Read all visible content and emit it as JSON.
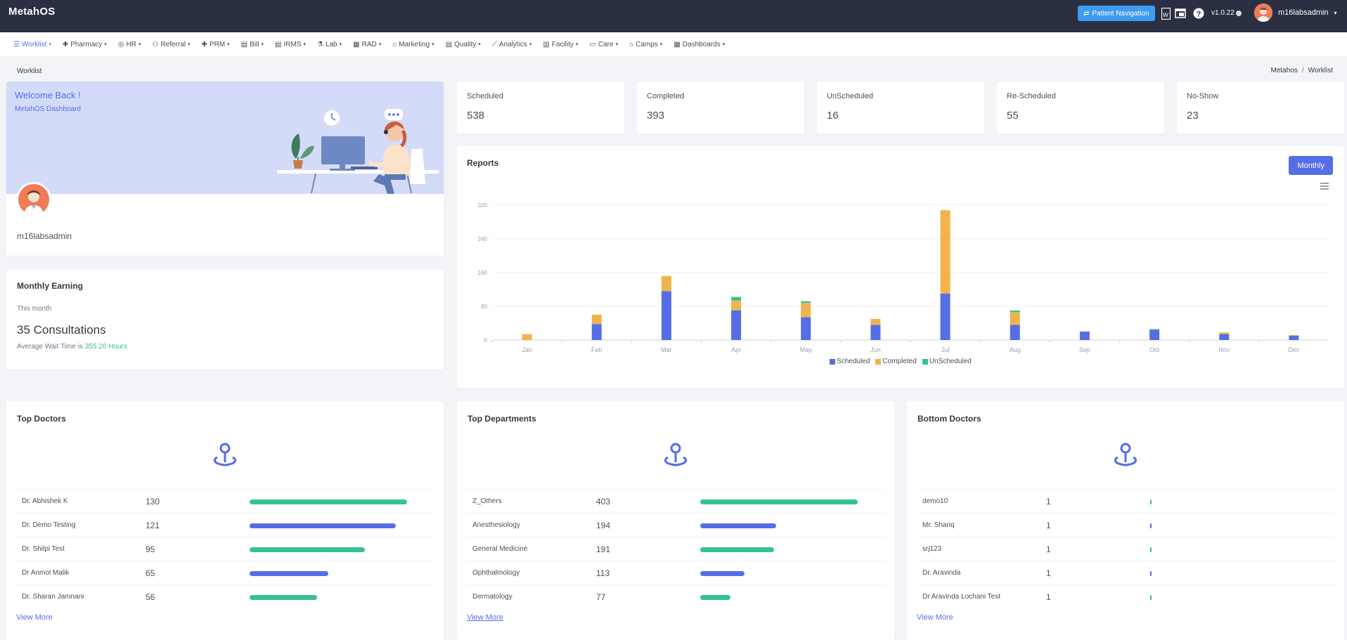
{
  "topbar": {
    "brand": "MetahOS",
    "patient_navigation": "Patient Navigation",
    "version": "v1.0.22",
    "username": "m16labsadmin"
  },
  "nav": [
    {
      "label": "Worklist",
      "icon": "list-icon"
    },
    {
      "label": "Pharmacy",
      "icon": "plus-icon"
    },
    {
      "label": "HR",
      "icon": "circle-icon"
    },
    {
      "label": "Referral",
      "icon": "users-icon"
    },
    {
      "label": "PRM",
      "icon": "plus-icon"
    },
    {
      "label": "Bill",
      "icon": "card-icon"
    },
    {
      "label": "IRMS",
      "icon": "card-icon"
    },
    {
      "label": "Lab",
      "icon": "flask-icon"
    },
    {
      "label": "RAD",
      "icon": "film-icon"
    },
    {
      "label": "Marketing",
      "icon": "bag-icon"
    },
    {
      "label": "Quality",
      "icon": "card-icon"
    },
    {
      "label": "Analytics",
      "icon": "trend-icon"
    },
    {
      "label": "Facility",
      "icon": "building-icon"
    },
    {
      "label": "Care",
      "icon": "bed-icon"
    },
    {
      "label": "Camps",
      "icon": "bag-icon"
    },
    {
      "label": "Dashboards",
      "icon": "grid-icon"
    }
  ],
  "breadcrumb": {
    "page": "Worklist",
    "root": "Metahos",
    "sep": "/",
    "current": "Worklist"
  },
  "welcome": {
    "title": "Welcome Back !",
    "subtitle": "MetahOS Dashboard",
    "name": "m16labsadmin"
  },
  "stats": [
    {
      "label": "Scheduled",
      "value": "538"
    },
    {
      "label": "Completed",
      "value": "393"
    },
    {
      "label": "UnScheduled",
      "value": "16"
    },
    {
      "label": "Re-Scheduled",
      "value": "55"
    },
    {
      "label": "No-Show",
      "value": "23"
    }
  ],
  "reports": {
    "title": "Reports",
    "period_button": "Monthly"
  },
  "chart_data": {
    "type": "bar",
    "stacked": true,
    "categories": [
      "Jan",
      "Feb",
      "Mar",
      "Apr",
      "May",
      "Jun",
      "Jul",
      "Aug",
      "Sep",
      "Oct",
      "Nov",
      "Dec"
    ],
    "series": [
      {
        "name": "Scheduled",
        "color": "#556ee6",
        "values": [
          0,
          38,
          116,
          70,
          54,
          36,
          110,
          36,
          20,
          24,
          14,
          10
        ]
      },
      {
        "name": "Completed",
        "color": "#f1b44c",
        "values": [
          14,
          22,
          36,
          24,
          34,
          14,
          198,
          30,
          0,
          0,
          4,
          2
        ]
      },
      {
        "name": "UnScheduled",
        "color": "#34c38f",
        "values": [
          0,
          0,
          0,
          8,
          4,
          0,
          0,
          4,
          0,
          2,
          0,
          0
        ]
      }
    ],
    "yticks": [
      0,
      80,
      160,
      240,
      320
    ],
    "ylim": [
      0,
      330
    ],
    "legend": "bottom",
    "grid": true
  },
  "earning": {
    "title": "Monthly Earning",
    "label": "This month",
    "big": "35 Consultations",
    "sub_prefix": "Average Wait Time is ",
    "sub_value": "355.26 Hours"
  },
  "top_doctors": {
    "title": "Top Doctors",
    "view_more": "View More",
    "rows": [
      {
        "name": "Dr. Abhishek K",
        "count": "130",
        "fraction": 1.0,
        "color": "#34c38f"
      },
      {
        "name": "Dr. Demo Testing",
        "count": "121",
        "fraction": 0.93,
        "color": "#556ee6"
      },
      {
        "name": "Dr. Shilpi Test",
        "count": "95",
        "fraction": 0.73,
        "color": "#34c38f"
      },
      {
        "name": "Dr Anmol Malik",
        "count": "65",
        "fraction": 0.5,
        "color": "#556ee6"
      },
      {
        "name": "Dr. Sharan Jamnani",
        "count": "56",
        "fraction": 0.43,
        "color": "#34c38f"
      }
    ]
  },
  "top_departments": {
    "title": "Top Departments",
    "view_more": "View More",
    "rows": [
      {
        "name": "Z_Others",
        "count": "403",
        "fraction": 1.0,
        "color": "#34c38f"
      },
      {
        "name": "Anesthesiology",
        "count": "194",
        "fraction": 0.48,
        "color": "#556ee6"
      },
      {
        "name": "General Medicine",
        "count": "191",
        "fraction": 0.47,
        "color": "#34c38f"
      },
      {
        "name": "Ophthalmology",
        "count": "113",
        "fraction": 0.28,
        "color": "#556ee6"
      },
      {
        "name": "Dermatology",
        "count": "77",
        "fraction": 0.19,
        "color": "#34c38f"
      }
    ]
  },
  "bottom_doctors": {
    "title": "Bottom Doctors",
    "view_more": "View More",
    "rows": [
      {
        "name": "demo10",
        "count": "1",
        "fraction": 0.01,
        "color": "#34c38f"
      },
      {
        "name": "Mr. Shariq",
        "count": "1",
        "fraction": 0.01,
        "color": "#556ee6"
      },
      {
        "name": "srj123",
        "count": "1",
        "fraction": 0.01,
        "color": "#34c38f"
      },
      {
        "name": "Dr. Aravinda",
        "count": "1",
        "fraction": 0.01,
        "color": "#556ee6"
      },
      {
        "name": "Dr Aravinda Lochani Test",
        "count": "1",
        "fraction": 0.01,
        "color": "#34c38f"
      }
    ]
  }
}
